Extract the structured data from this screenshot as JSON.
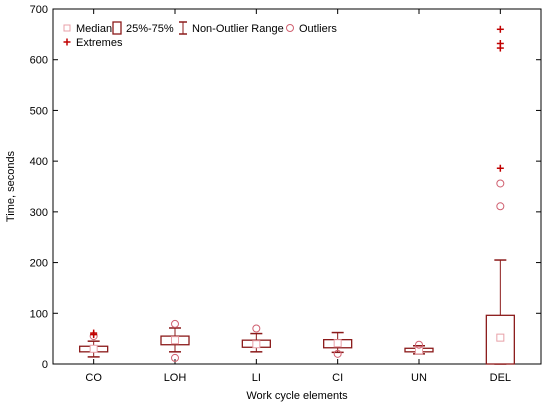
{
  "chart_data": {
    "type": "boxplot",
    "xlabel": "Work cycle elements",
    "ylabel": "Time, seconds",
    "ylim": [
      0,
      700
    ],
    "yticks": [
      "0",
      "100",
      "200",
      "300",
      "400",
      "500",
      "600",
      "700"
    ],
    "categories": [
      "CO",
      "LOH",
      "LI",
      "CI",
      "UN",
      "DEL"
    ],
    "boxes": [
      {
        "median": 30,
        "q1": 24,
        "q3": 35,
        "whisker_low": 14,
        "whisker_high": 45,
        "outliers": [
          55
        ],
        "extremes": [
          58,
          61
        ]
      },
      {
        "median": 47,
        "q1": 38,
        "q3": 55,
        "whisker_low": 24,
        "whisker_high": 71,
        "outliers": [
          12,
          79
        ],
        "extremes": []
      },
      {
        "median": 39,
        "q1": 33,
        "q3": 47,
        "whisker_low": 24,
        "whisker_high": 60,
        "outliers": [
          70
        ],
        "extremes": []
      },
      {
        "median": 41,
        "q1": 32,
        "q3": 48,
        "whisker_low": 23,
        "whisker_high": 62,
        "outliers": [
          20
        ],
        "extremes": []
      },
      {
        "median": 27,
        "q1": 24,
        "q3": 31,
        "whisker_low": 20,
        "whisker_high": 36,
        "outliers": [
          38
        ],
        "extremes": []
      },
      {
        "median": 52,
        "q1": 0,
        "q3": 96,
        "whisker_low": 0,
        "whisker_high": 205,
        "outliers": [
          311,
          356
        ],
        "extremes": [
          386,
          623,
          632,
          660
        ]
      }
    ],
    "legend": {
      "placement": "top-left",
      "items": [
        {
          "label": "Median",
          "symbol": "square"
        },
        {
          "label": "25%-75%",
          "symbol": "box"
        },
        {
          "label": "Non-Outlier Range",
          "symbol": "whisker"
        },
        {
          "label": "Outliers",
          "symbol": "circle"
        },
        {
          "label": "Extremes",
          "symbol": "plus"
        }
      ]
    },
    "colors": {
      "box": "#8b1a1a",
      "median": "#e8a0a8",
      "outlier": "#d06070",
      "extreme": "#c00000",
      "axis": "#000000"
    }
  }
}
